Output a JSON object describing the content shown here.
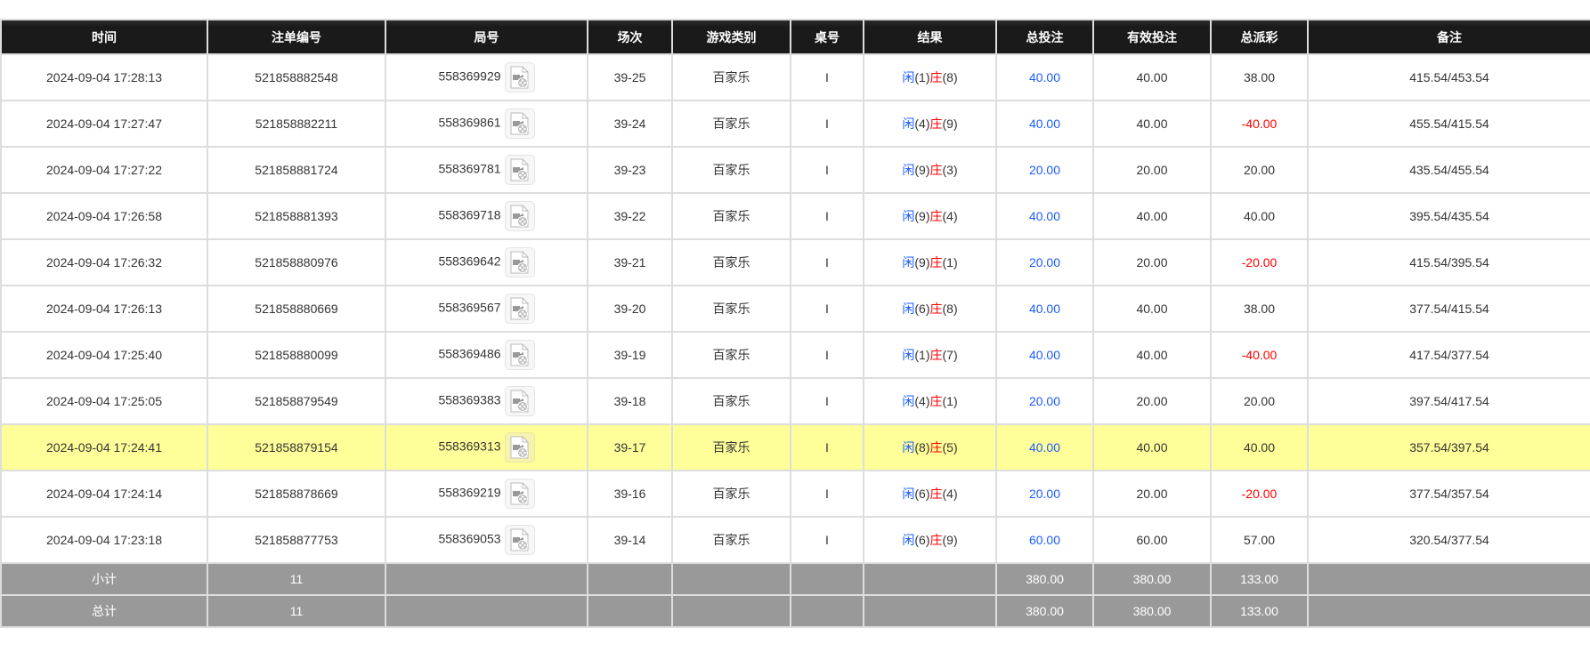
{
  "colors": {
    "header_bg": "#1a1a1a",
    "highlight": "#ffff99",
    "summary_bg": "#999999",
    "blue": "#1a5cff",
    "red": "#ff0000"
  },
  "columns": [
    "时间",
    "注单编号",
    "局号",
    "场次",
    "游戏类别",
    "桌号",
    "结果",
    "总投注",
    "有效投注",
    "总派彩",
    "备注"
  ],
  "result_labels": {
    "player": "闲",
    "banker": "庄"
  },
  "replay_icon": "video-file-icon",
  "rows": [
    {
      "time": "2024-09-04 17:28:13",
      "bet_id": "521858882548",
      "round": "558369929",
      "shoe": "39-25",
      "game": "百家乐",
      "table": "I",
      "player": "(1)",
      "banker": "(8)",
      "total": "40.00",
      "valid": "40.00",
      "payout": "38.00",
      "note": "415.54/453.54"
    },
    {
      "time": "2024-09-04 17:27:47",
      "bet_id": "521858882211",
      "round": "558369861",
      "shoe": "39-24",
      "game": "百家乐",
      "table": "I",
      "player": "(4)",
      "banker": "(9)",
      "total": "40.00",
      "valid": "40.00",
      "payout": "-40.00",
      "note": "455.54/415.54"
    },
    {
      "time": "2024-09-04 17:27:22",
      "bet_id": "521858881724",
      "round": "558369781",
      "shoe": "39-23",
      "game": "百家乐",
      "table": "I",
      "player": "(9)",
      "banker": "(3)",
      "total": "20.00",
      "valid": "20.00",
      "payout": "20.00",
      "note": "435.54/455.54"
    },
    {
      "time": "2024-09-04 17:26:58",
      "bet_id": "521858881393",
      "round": "558369718",
      "shoe": "39-22",
      "game": "百家乐",
      "table": "I",
      "player": "(9)",
      "banker": "(4)",
      "total": "40.00",
      "valid": "40.00",
      "payout": "40.00",
      "note": "395.54/435.54"
    },
    {
      "time": "2024-09-04 17:26:32",
      "bet_id": "521858880976",
      "round": "558369642",
      "shoe": "39-21",
      "game": "百家乐",
      "table": "I",
      "player": "(9)",
      "banker": "(1)",
      "total": "20.00",
      "valid": "20.00",
      "payout": "-20.00",
      "note": "415.54/395.54"
    },
    {
      "time": "2024-09-04 17:26:13",
      "bet_id": "521858880669",
      "round": "558369567",
      "shoe": "39-20",
      "game": "百家乐",
      "table": "I",
      "player": "(6)",
      "banker": "(8)",
      "total": "40.00",
      "valid": "40.00",
      "payout": "38.00",
      "note": "377.54/415.54"
    },
    {
      "time": "2024-09-04 17:25:40",
      "bet_id": "521858880099",
      "round": "558369486",
      "shoe": "39-19",
      "game": "百家乐",
      "table": "I",
      "player": "(1)",
      "banker": "(7)",
      "total": "40.00",
      "valid": "40.00",
      "payout": "-40.00",
      "note": "417.54/377.54"
    },
    {
      "time": "2024-09-04 17:25:05",
      "bet_id": "521858879549",
      "round": "558369383",
      "shoe": "39-18",
      "game": "百家乐",
      "table": "I",
      "player": "(4)",
      "banker": "(1)",
      "total": "20.00",
      "valid": "20.00",
      "payout": "20.00",
      "note": "397.54/417.54"
    },
    {
      "time": "2024-09-04 17:24:41",
      "bet_id": "521858879154",
      "round": "558369313",
      "shoe": "39-17",
      "game": "百家乐",
      "table": "I",
      "player": "(8)",
      "banker": "(5)",
      "total": "40.00",
      "valid": "40.00",
      "payout": "40.00",
      "note": "357.54/397.54",
      "highlighted": true
    },
    {
      "time": "2024-09-04 17:24:14",
      "bet_id": "521858878669",
      "round": "558369219",
      "shoe": "39-16",
      "game": "百家乐",
      "table": "I",
      "player": "(6)",
      "banker": "(4)",
      "total": "20.00",
      "valid": "20.00",
      "payout": "-20.00",
      "note": "377.54/357.54"
    },
    {
      "time": "2024-09-04 17:23:18",
      "bet_id": "521858877753",
      "round": "558369053",
      "shoe": "39-14",
      "game": "百家乐",
      "table": "I",
      "player": "(6)",
      "banker": "(9)",
      "total": "60.00",
      "valid": "60.00",
      "payout": "57.00",
      "note": "320.54/377.54"
    }
  ],
  "subtotal": {
    "label": "小计",
    "count": "11",
    "total": "380.00",
    "valid": "380.00",
    "payout": "133.00"
  },
  "grandtotal": {
    "label": "总计",
    "count": "11",
    "total": "380.00",
    "valid": "380.00",
    "payout": "133.00"
  }
}
